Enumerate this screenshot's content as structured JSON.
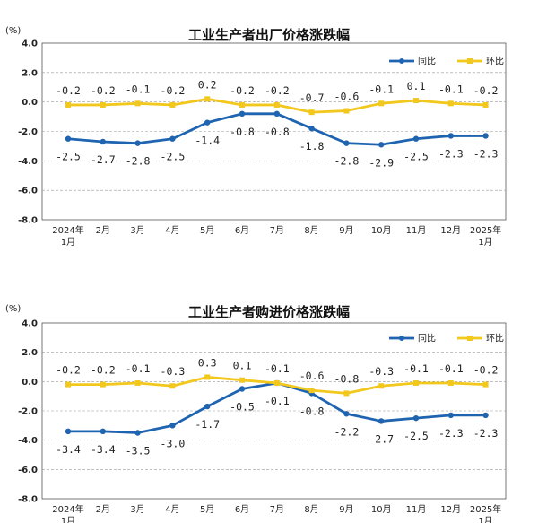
{
  "chart_data": [
    {
      "type": "line",
      "title": "工业生产者出厂价格涨跌幅",
      "unit": "(%)",
      "categories": [
        [
          "2024年",
          "1月"
        ],
        [
          "2月"
        ],
        [
          "3月"
        ],
        [
          "4月"
        ],
        [
          "5月"
        ],
        [
          "6月"
        ],
        [
          "7月"
        ],
        [
          "8月"
        ],
        [
          "9月"
        ],
        [
          "10月"
        ],
        [
          "11月"
        ],
        [
          "12月"
        ],
        [
          "2025年",
          "1月"
        ]
      ],
      "yticks": [
        "4.0",
        "2.0",
        "0.0",
        "-2.0",
        "-4.0",
        "-6.0",
        "-8.0"
      ],
      "ylim": [
        -8,
        4
      ],
      "grid": true,
      "legend_position": "top-right",
      "series": [
        {
          "name": "同比",
          "color": "#1f64b0",
          "values": [
            -2.5,
            -2.7,
            -2.8,
            -2.5,
            -1.4,
            -0.8,
            -0.8,
            -1.8,
            -2.8,
            -2.9,
            -2.5,
            -2.3,
            -2.3
          ],
          "labels": [
            "-2.5",
            "-2.7",
            "-2.8",
            "-2.5",
            "-1.4",
            "-0.8",
            "-0.8",
            "-1.8",
            "-2.8",
            "-2.9",
            "-2.5",
            "-2.3",
            "-2.3"
          ]
        },
        {
          "name": "环比",
          "color": "#f2c81d",
          "values": [
            -0.2,
            -0.2,
            -0.1,
            -0.2,
            0.2,
            -0.2,
            -0.2,
            -0.7,
            -0.6,
            -0.1,
            0.1,
            -0.1,
            -0.2
          ],
          "labels": [
            "-0.2",
            "-0.2",
            "-0.1",
            "-0.2",
            "0.2",
            "-0.2",
            "-0.2",
            "-0.7",
            "-0.6",
            "-0.1",
            "0.1",
            "-0.1",
            "-0.2"
          ]
        }
      ]
    },
    {
      "type": "line",
      "title": "工业生产者购进价格涨跌幅",
      "unit": "(%)",
      "categories": [
        [
          "2024年",
          "1月"
        ],
        [
          "2月"
        ],
        [
          "3月"
        ],
        [
          "4月"
        ],
        [
          "5月"
        ],
        [
          "6月"
        ],
        [
          "7月"
        ],
        [
          "8月"
        ],
        [
          "9月"
        ],
        [
          "10月"
        ],
        [
          "11月"
        ],
        [
          "12月"
        ],
        [
          "2025年",
          "1月"
        ]
      ],
      "yticks": [
        "4.0",
        "2.0",
        "0.0",
        "-2.0",
        "-4.0",
        "-6.0",
        "-8.0"
      ],
      "ylim": [
        -8,
        4
      ],
      "grid": true,
      "legend_position": "top-right",
      "series": [
        {
          "name": "同比",
          "color": "#1f64b0",
          "values": [
            -3.4,
            -3.4,
            -3.5,
            -3.0,
            -1.7,
            -0.5,
            -0.1,
            -0.8,
            -2.2,
            -2.7,
            -2.5,
            -2.3,
            -2.3
          ],
          "labels": [
            "-3.4",
            "-3.4",
            "-3.5",
            "-3.0",
            "-1.7",
            "-0.5",
            "-0.1",
            "-0.8",
            "-2.2",
            "-2.7",
            "-2.5",
            "-2.3",
            "-2.3"
          ]
        },
        {
          "name": "环比",
          "color": "#f2c81d",
          "values": [
            -0.2,
            -0.2,
            -0.1,
            -0.3,
            0.3,
            0.1,
            -0.1,
            -0.6,
            -0.8,
            -0.3,
            -0.1,
            -0.1,
            -0.2
          ],
          "labels": [
            "-0.2",
            "-0.2",
            "-0.1",
            "-0.3",
            "0.3",
            "0.1",
            "-0.1",
            "-0.6",
            "-0.8",
            "-0.3",
            "-0.1",
            "-0.1",
            "-0.2"
          ]
        }
      ]
    }
  ]
}
